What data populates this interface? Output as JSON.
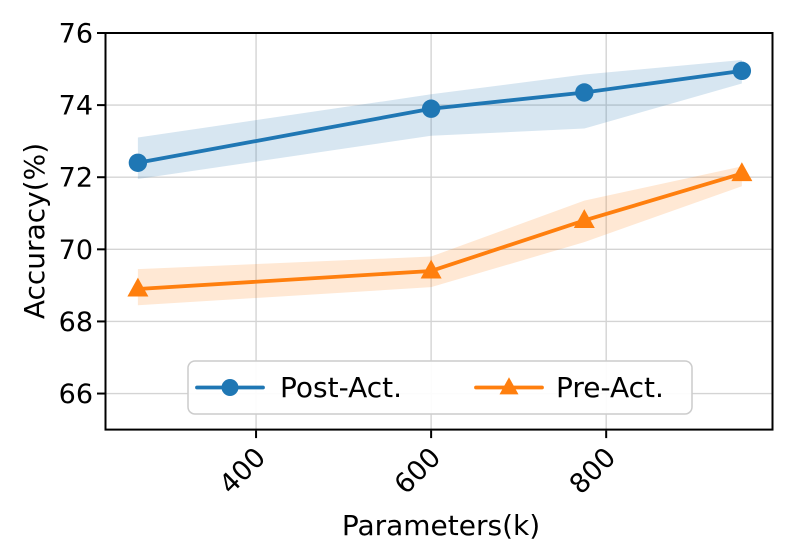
{
  "figure": {
    "background": "#ffffff"
  },
  "chart_data": {
    "type": "line",
    "title": "",
    "xlabel": "Parameters(k)",
    "ylabel": "Accuracy(%)",
    "x": [
      265,
      600,
      775,
      955
    ],
    "series": [
      {
        "name": "Post-Act.",
        "marker": "circle",
        "color": "#1f77b4",
        "band_alpha": 0.18,
        "values": [
          72.4,
          73.9,
          74.35,
          74.95
        ],
        "band_low": [
          71.95,
          73.15,
          73.35,
          74.6
        ],
        "band_high": [
          73.1,
          74.3,
          74.85,
          75.25
        ]
      },
      {
        "name": "Pre-Act.",
        "marker": "triangle",
        "color": "#ff7f0e",
        "band_alpha": 0.18,
        "values": [
          68.9,
          69.4,
          70.8,
          72.1
        ],
        "band_low": [
          68.45,
          68.95,
          70.2,
          71.75
        ],
        "band_high": [
          69.45,
          69.8,
          71.35,
          72.3
        ]
      }
    ],
    "xticks": {
      "values": [
        400,
        600,
        800
      ],
      "labels": [
        "400",
        "600",
        "800"
      ],
      "rotation": 45
    },
    "yticks": {
      "values": [
        66,
        68,
        70,
        72,
        74,
        76
      ],
      "labels": [
        "66",
        "68",
        "70",
        "72",
        "74",
        "76"
      ]
    },
    "xlim": [
      228,
      990
    ],
    "ylim": [
      65.0,
      76.0
    ],
    "grid": true,
    "grid_color": "#d4d4d4",
    "axis_color": "#000000",
    "legend": {
      "position": "lower center inside",
      "frame_color": "#cccccc",
      "frame_fill": "#ffffff"
    }
  }
}
